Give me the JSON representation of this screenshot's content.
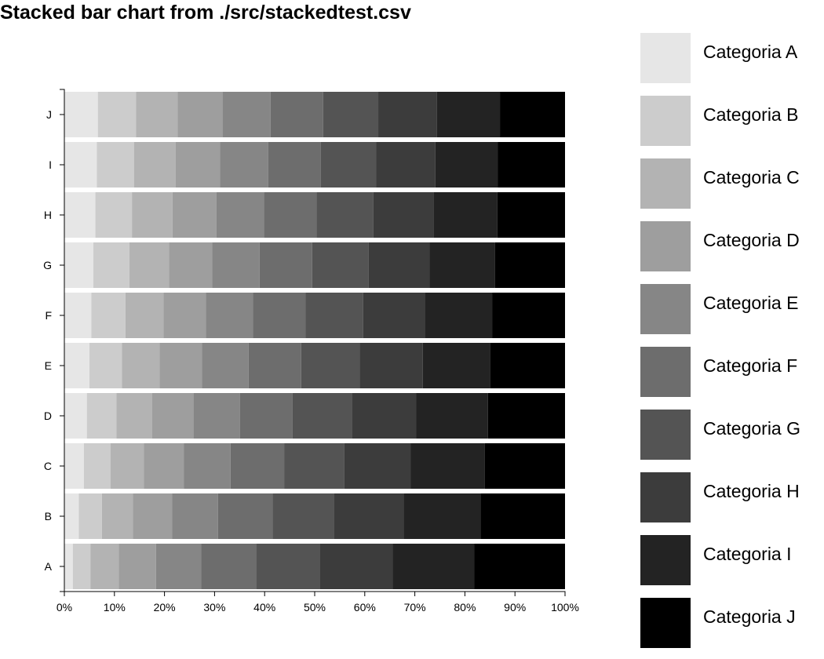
{
  "chart_data": {
    "type": "bar",
    "orientation": "horizontal",
    "stacked": true,
    "normalized": true,
    "title": "Stacked bar chart from ./src/stackedtest.csv",
    "xlabel": "",
    "ylabel": "",
    "xlim": [
      0,
      100
    ],
    "x_ticks": [
      "0%",
      "10%",
      "20%",
      "30%",
      "40%",
      "50%",
      "60%",
      "70%",
      "80%",
      "90%",
      "100%"
    ],
    "categories": [
      "A",
      "B",
      "C",
      "D",
      "E",
      "F",
      "G",
      "H",
      "I",
      "J"
    ],
    "legend_position": "right",
    "grid": false,
    "series": [
      {
        "name": "Categoria A",
        "color": "#e6e6e6",
        "values": [
          1.7,
          2.9,
          3.9,
          4.5,
          5.0,
          5.4,
          5.8,
          6.2,
          6.5,
          6.7
        ]
      },
      {
        "name": "Categoria B",
        "color": "#cccccc",
        "values": [
          3.5,
          4.6,
          5.3,
          5.9,
          6.5,
          6.8,
          7.2,
          7.3,
          7.4,
          7.6
        ]
      },
      {
        "name": "Categoria C",
        "color": "#b3b3b3",
        "values": [
          5.7,
          6.2,
          6.7,
          7.1,
          7.5,
          7.6,
          7.9,
          8.1,
          8.3,
          8.3
        ]
      },
      {
        "name": "Categoria D",
        "color": "#9e9e9e",
        "values": [
          7.4,
          7.8,
          8.0,
          8.3,
          8.5,
          8.5,
          8.6,
          8.8,
          8.9,
          9.0
        ]
      },
      {
        "name": "Categoria E",
        "color": "#868686",
        "values": [
          9.0,
          9.2,
          9.3,
          9.3,
          9.3,
          9.4,
          9.5,
          9.5,
          9.6,
          9.6
        ]
      },
      {
        "name": "Categoria F",
        "color": "#6d6d6d",
        "values": [
          11.0,
          10.9,
          10.7,
          10.5,
          10.5,
          10.5,
          10.5,
          10.5,
          10.5,
          10.5
        ]
      },
      {
        "name": "Categoria G",
        "color": "#545454",
        "values": [
          12.7,
          12.2,
          12.0,
          11.8,
          11.7,
          11.5,
          11.3,
          11.3,
          11.1,
          11.0
        ]
      },
      {
        "name": "Categoria H",
        "color": "#3c3c3c",
        "values": [
          14.6,
          14.0,
          13.3,
          12.9,
          12.6,
          12.4,
          12.1,
          12.0,
          11.8,
          11.7
        ]
      },
      {
        "name": "Categoria I",
        "color": "#232323",
        "values": [
          16.3,
          15.3,
          14.8,
          14.3,
          13.5,
          13.4,
          13.1,
          12.8,
          12.5,
          12.6
        ]
      },
      {
        "name": "Categoria J",
        "color": "#000000",
        "values": [
          18.1,
          16.9,
          16.0,
          15.4,
          14.9,
          14.5,
          14.0,
          13.5,
          13.4,
          13.0
        ]
      }
    ]
  }
}
